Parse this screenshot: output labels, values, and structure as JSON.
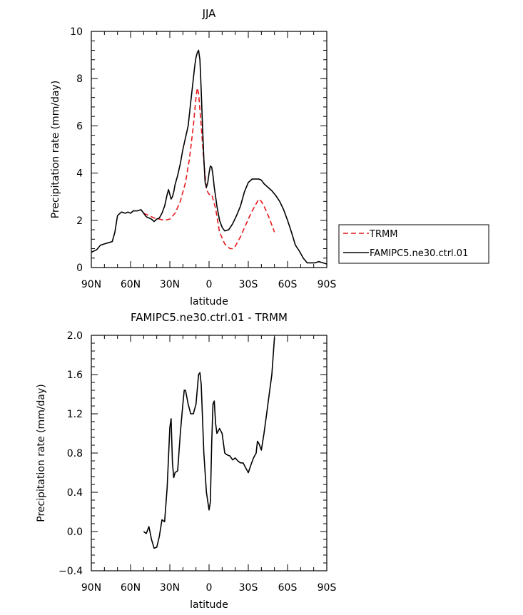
{
  "chart_data": [
    {
      "type": "line",
      "title": "JJA",
      "xlabel": "latitude",
      "ylabel": "Precipitation rate (mm/day)",
      "xlim": [
        90,
        -90
      ],
      "ylim": [
        0,
        10
      ],
      "x_tick_values": [
        90,
        60,
        30,
        0,
        -30,
        -60,
        -90
      ],
      "x_tick_labels": [
        "90N",
        "60N",
        "30N",
        "0",
        "30S",
        "60S",
        "90S"
      ],
      "y_tick_values": [
        0,
        2,
        4,
        6,
        8,
        10
      ],
      "y_tick_labels": [
        "0",
        "2",
        "4",
        "6",
        "8",
        "10"
      ],
      "legend_position": "right",
      "series": [
        {
          "name": "TRMM",
          "color": "#e8191d",
          "dash": "dashed",
          "x": [
            50,
            46,
            42,
            38,
            34,
            30,
            26,
            22,
            18,
            15,
            12,
            10,
            9,
            8,
            6,
            4,
            2,
            0,
            -2,
            -5,
            -8,
            -12,
            -16,
            -18,
            -20,
            -24,
            -28,
            -32,
            -36,
            -38,
            -40,
            -42,
            -44,
            -46,
            -48,
            -50
          ],
          "y": [
            2.3,
            2.2,
            2.1,
            2.05,
            2.0,
            2.05,
            2.3,
            2.8,
            3.6,
            4.6,
            6.0,
            7.2,
            7.6,
            7.4,
            6.0,
            4.5,
            3.3,
            3.1,
            3.1,
            2.5,
            1.5,
            1.0,
            0.8,
            0.8,
            0.9,
            1.3,
            1.8,
            2.3,
            2.7,
            2.9,
            2.8,
            2.6,
            2.35,
            2.1,
            1.8,
            1.5
          ]
        },
        {
          "name": "FAMIPC5.ne30.ctrl.01",
          "color": "#000000",
          "dash": "solid",
          "x": [
            90,
            86,
            83,
            80,
            77,
            74,
            72,
            70,
            67,
            64,
            62,
            60,
            58,
            55,
            52,
            50,
            48,
            46,
            44,
            42,
            40,
            38,
            36,
            34,
            32,
            31,
            30,
            29,
            28,
            27,
            26,
            24,
            22,
            20,
            18,
            16,
            14,
            12,
            11,
            10,
            9,
            8,
            7,
            6,
            5,
            4,
            3,
            2,
            1,
            0,
            -1,
            -2,
            -3,
            -4,
            -5,
            -6,
            -8,
            -10,
            -12,
            -15,
            -18,
            -21,
            -24,
            -27,
            -30,
            -33,
            -36,
            -38,
            -40,
            -42,
            -45,
            -48,
            -51,
            -54,
            -57,
            -60,
            -63,
            -66,
            -69,
            -72,
            -75,
            -78,
            -81,
            -84,
            -87,
            -90
          ],
          "y": [
            0.65,
            0.75,
            0.95,
            1.0,
            1.05,
            1.1,
            1.5,
            2.2,
            2.35,
            2.3,
            2.35,
            2.3,
            2.4,
            2.4,
            2.45,
            2.3,
            2.15,
            2.1,
            2.05,
            1.95,
            2.05,
            2.1,
            2.3,
            2.6,
            3.1,
            3.3,
            3.1,
            2.9,
            3.0,
            3.2,
            3.5,
            3.9,
            4.4,
            5.0,
            5.5,
            6.0,
            7.0,
            8.0,
            8.5,
            8.9,
            9.1,
            9.2,
            8.8,
            7.5,
            6.0,
            4.6,
            3.6,
            3.4,
            3.6,
            4.0,
            4.3,
            4.25,
            3.9,
            3.4,
            3.0,
            2.6,
            2.0,
            1.7,
            1.55,
            1.6,
            1.85,
            2.2,
            2.6,
            3.2,
            3.6,
            3.75,
            3.75,
            3.75,
            3.7,
            3.55,
            3.4,
            3.25,
            3.05,
            2.8,
            2.45,
            2.0,
            1.5,
            0.95,
            0.7,
            0.4,
            0.2,
            0.2,
            0.2,
            0.25,
            0.2,
            0.15
          ]
        }
      ]
    },
    {
      "type": "line",
      "title": "FAMIPC5.ne30.ctrl.01 - TRMM",
      "xlabel": "latitude",
      "ylabel": "Precipitation rate (mm/day)",
      "xlim": [
        90,
        -90
      ],
      "ylim": [
        -0.4,
        2.0
      ],
      "x_tick_values": [
        90,
        60,
        30,
        0,
        -30,
        -60,
        -90
      ],
      "x_tick_labels": [
        "90N",
        "60N",
        "30N",
        "0",
        "30S",
        "60S",
        "90S"
      ],
      "y_tick_values": [
        -0.4,
        0.0,
        0.4,
        0.8,
        1.2,
        1.6,
        2.0
      ],
      "y_tick_labels": [
        "−0.4",
        "0.0",
        "0.4",
        "0.8",
        "1.2",
        "1.6",
        "2.0"
      ],
      "series": [
        {
          "name": "",
          "color": "#000000",
          "dash": "solid",
          "x": [
            50,
            48,
            46,
            44,
            42,
            40,
            38,
            36,
            34,
            32,
            30,
            29,
            28,
            27,
            26,
            24,
            22,
            20,
            19,
            18,
            16,
            14,
            12,
            10,
            8,
            7,
            6,
            4,
            2,
            0,
            -1,
            -2,
            -3,
            -4,
            -5,
            -6,
            -8,
            -10,
            -12,
            -14,
            -16,
            -18,
            -20,
            -22,
            -24,
            -26,
            -28,
            -30,
            -32,
            -34,
            -36,
            -37,
            -38,
            -40,
            -42,
            -44,
            -46,
            -48,
            -50
          ],
          "y": [
            0.0,
            -0.02,
            0.05,
            -0.08,
            -0.17,
            -0.16,
            -0.05,
            0.12,
            0.1,
            0.45,
            1.06,
            1.15,
            0.7,
            0.55,
            0.6,
            0.62,
            1.0,
            1.3,
            1.44,
            1.44,
            1.3,
            1.2,
            1.2,
            1.3,
            1.6,
            1.62,
            1.5,
            0.8,
            0.4,
            0.22,
            0.3,
            0.9,
            1.3,
            1.33,
            1.1,
            1.0,
            1.05,
            1.0,
            0.8,
            0.78,
            0.77,
            0.73,
            0.75,
            0.72,
            0.7,
            0.7,
            0.65,
            0.6,
            0.68,
            0.75,
            0.8,
            0.92,
            0.9,
            0.83,
            1.0,
            1.2,
            1.4,
            1.6,
            1.98
          ]
        }
      ]
    }
  ]
}
